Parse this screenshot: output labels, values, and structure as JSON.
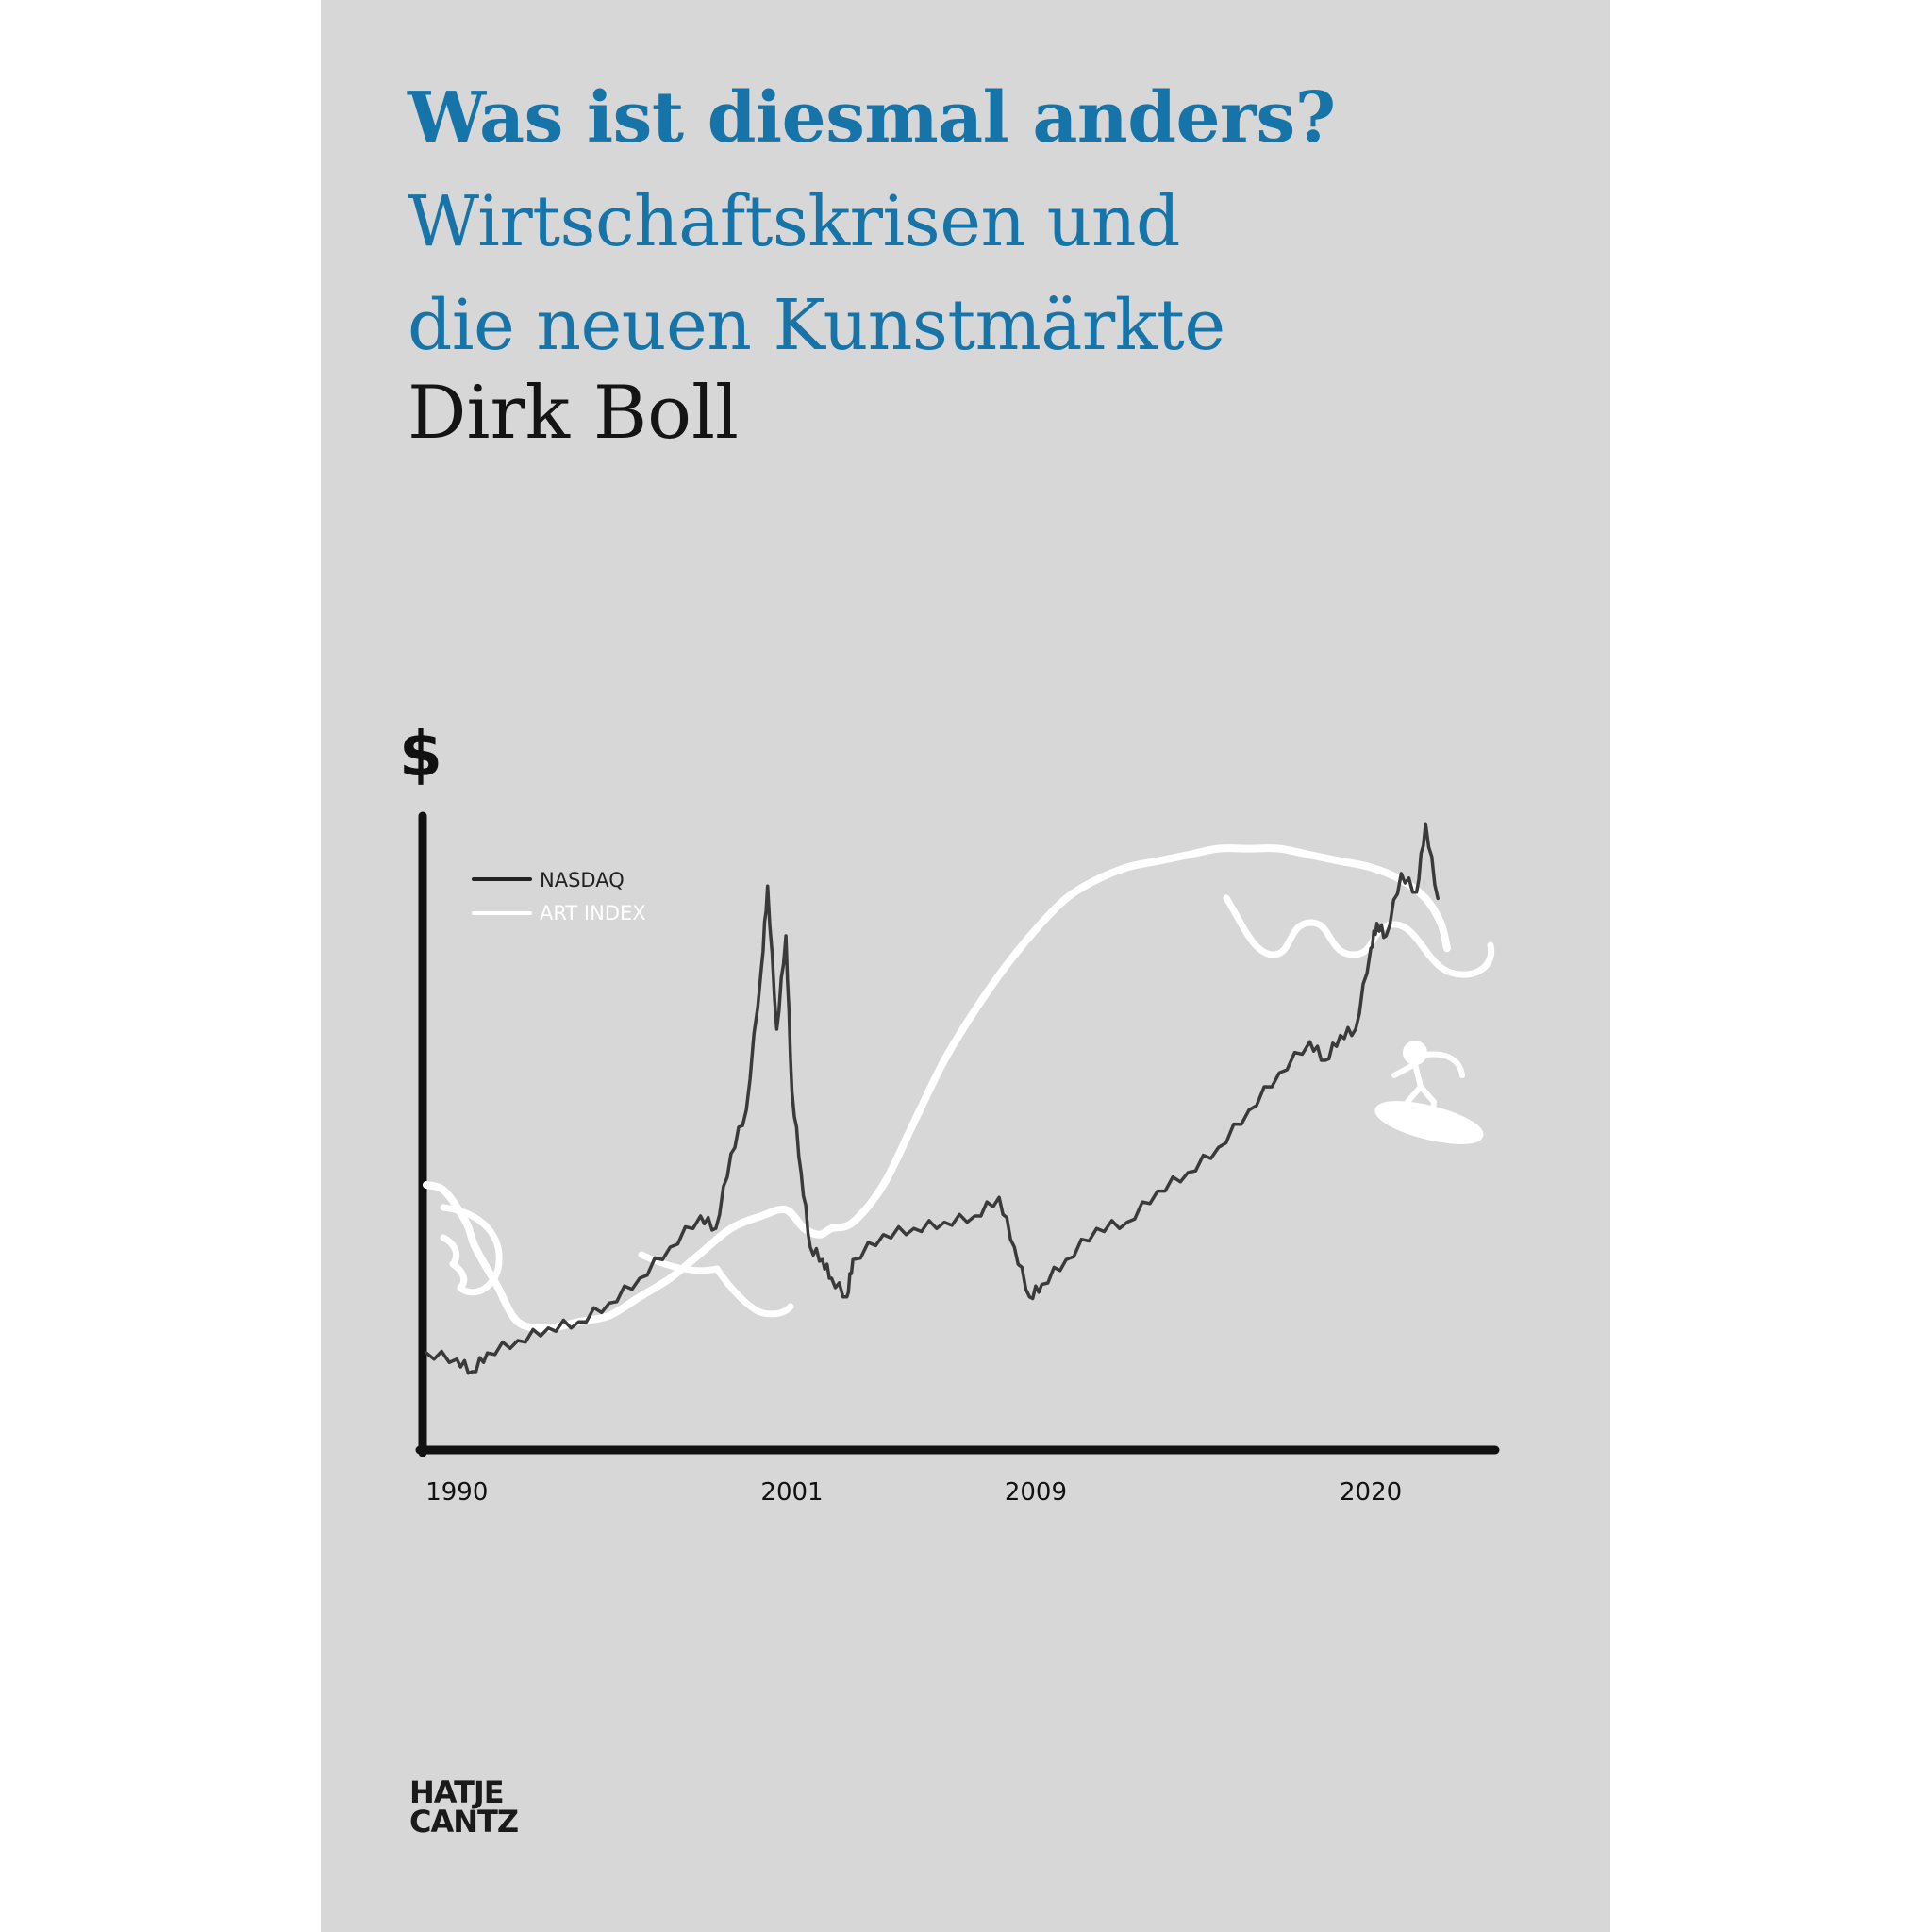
{
  "cover": {
    "title": "Was ist diesmal anders?",
    "subtitle_line1": "Wirtschaftskrisen und",
    "subtitle_line2": "die neuen Kunstmärkte",
    "author": "Dirk Boll",
    "publisher_line1": "HATJE",
    "publisher_line2": "CANTZ"
  },
  "colors": {
    "background": "#d6d7d6",
    "title": "#1674a8",
    "nasdaq": "#3a3a3a",
    "art_index": "#ffffff"
  },
  "chart_data": {
    "type": "line",
    "ylabel": "$",
    "legend": [
      "NASDAQ",
      "ART INDEX"
    ],
    "legend_position": "top-left",
    "x_ticks": [
      "1990",
      "2001",
      "2009",
      "2020"
    ],
    "grid": false,
    "xlim": [
      1989,
      2023
    ],
    "ylim": [
      0,
      100
    ],
    "series": [
      {
        "name": "NASDAQ",
        "x": [
          1989,
          1990,
          1990.5,
          1991,
          1992,
          1993,
          1994,
          1995,
          1996,
          1997,
          1998,
          1998.5,
          1999,
          1999.5,
          2000,
          2000.2,
          2000.5,
          2000.8,
          2001,
          2001.3,
          2001.6,
          2002,
          2002.3,
          2002.8,
          2003,
          2004,
          2005,
          2006,
          2007,
          2007.8,
          2008.3,
          2008.8,
          2009.2,
          2010,
          2011,
          2012,
          2013,
          2014,
          2015,
          2016,
          2017,
          2018,
          2018.5,
          2019,
          2019.5,
          2020,
          2020.2,
          2020.5,
          2021,
          2021.5,
          2021.8,
          2022.2
        ],
        "values": [
          13,
          12,
          10,
          13,
          15,
          17,
          18,
          21,
          25,
          30,
          35,
          33,
          45,
          52,
          75,
          88,
          65,
          80,
          55,
          42,
          30,
          28,
          25,
          22,
          28,
          32,
          33,
          34,
          35,
          38,
          30,
          22,
          24,
          28,
          33,
          34,
          39,
          42,
          46,
          52,
          58,
          63,
          60,
          64,
          65,
          78,
          82,
          80,
          90,
          87,
          98,
          86
        ]
      },
      {
        "name": "ART INDEX",
        "x": [
          1989,
          1989.6,
          1990.3,
          1990.6,
          1991.3,
          1992,
          1993,
          1994,
          1995,
          1996,
          1997,
          1998,
          1999,
          2000,
          2000.8,
          2001.4,
          2001.9,
          2002.3,
          2003,
          2004,
          2005,
          2006,
          2007,
          2008,
          2009,
          2010,
          2011,
          2012,
          2013,
          2014,
          2015,
          2016,
          2017,
          2018,
          2019,
          2020,
          2021,
          2021.8,
          2022.3,
          2022.5
        ],
        "values": [
          40,
          39,
          34,
          30,
          24,
          18,
          17,
          18,
          19,
          22,
          25,
          29,
          33,
          35,
          36,
          33,
          32,
          33,
          34,
          40,
          50,
          60,
          68,
          75,
          81,
          86,
          89,
          91,
          92,
          93,
          94,
          94,
          94,
          93,
          92,
          91,
          89,
          86,
          82,
          78
        ]
      }
    ]
  }
}
